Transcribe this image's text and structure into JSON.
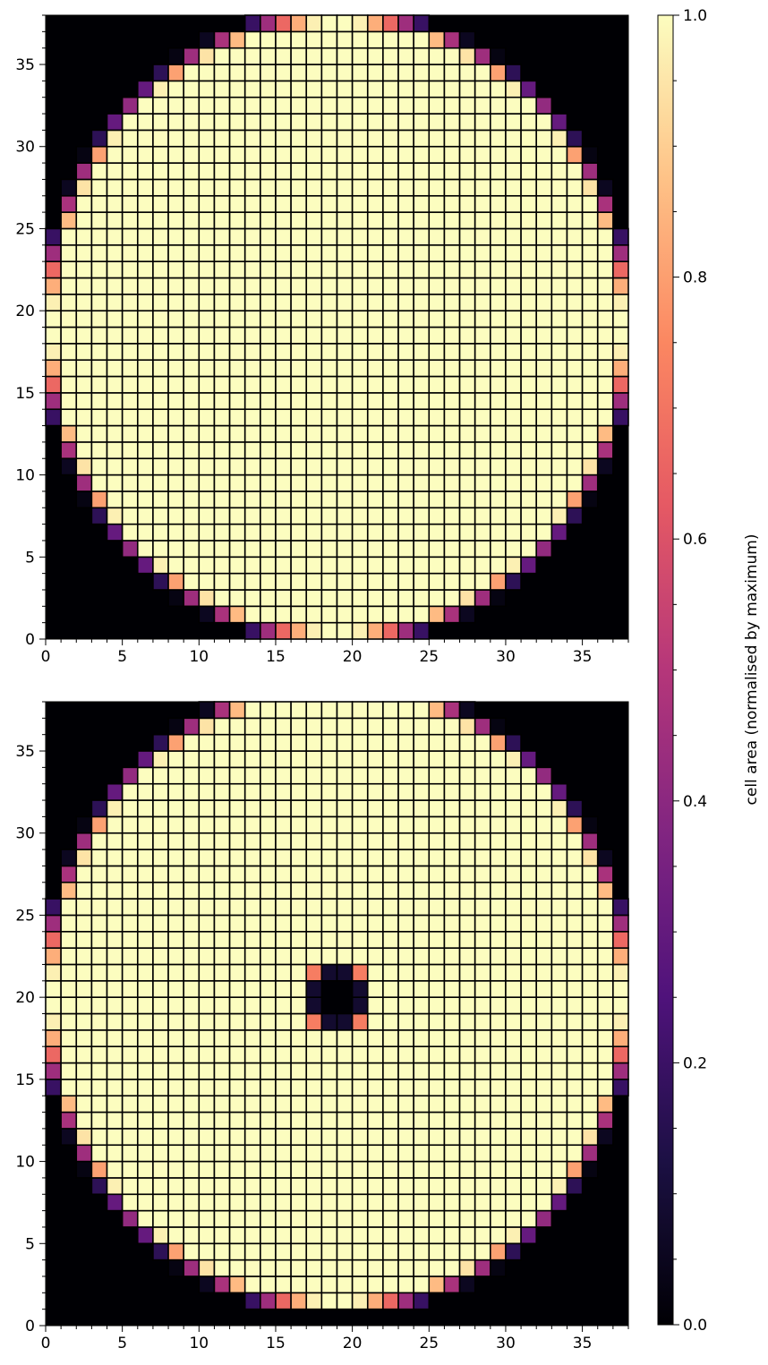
{
  "colors": {
    "background": "#ffffff",
    "grid_line": "#000000",
    "colormap": "magma",
    "colormap_stops": [
      "#000004",
      "#1c1044",
      "#4f127b",
      "#812581",
      "#b5367a",
      "#e55964",
      "#fb8761",
      "#fec287",
      "#fcfdbf"
    ]
  },
  "colorbar": {
    "label": "cell area (normalised by maximum)",
    "ticks": [
      "0.0",
      "0.2",
      "0.4",
      "0.6",
      "0.8",
      "1.0"
    ],
    "range": [
      0,
      1
    ]
  },
  "chart_data": [
    {
      "type": "heatmap",
      "title": "",
      "xlabel": "",
      "ylabel": "",
      "xlim": [
        0,
        38
      ],
      "ylim": [
        0,
        38
      ],
      "x_ticks": [
        "0",
        "5",
        "10",
        "15",
        "20",
        "25",
        "30",
        "35"
      ],
      "y_ticks": [
        "0",
        "5",
        "10",
        "15",
        "20",
        "25",
        "30",
        "35"
      ],
      "description_values": "cell area fraction of a 38x38 grid lying inside a circle of radius 19 centred at (19,19); 1.0 inside, fractional on the boundary, 0 outside",
      "circle": {
        "center": [
          19,
          19
        ],
        "radius": 19
      },
      "hole": null
    },
    {
      "type": "heatmap",
      "title": "",
      "xlabel": "",
      "ylabel": "",
      "xlim": [
        0,
        38
      ],
      "ylim": [
        0,
        38
      ],
      "x_ticks": [
        "0",
        "5",
        "10",
        "15",
        "20",
        "25",
        "30",
        "35"
      ],
      "y_ticks": [
        "0",
        "5",
        "10",
        "15",
        "20",
        "25",
        "30",
        "35"
      ],
      "description_values": "cell area fraction of a 38x38 grid lying inside an annulus: outer radius 19, inner radius 2, centred at (19,20)",
      "circle": {
        "center": [
          19,
          20
        ],
        "radius": 19
      },
      "hole": {
        "center": [
          19,
          20
        ],
        "radius": 2
      }
    }
  ]
}
